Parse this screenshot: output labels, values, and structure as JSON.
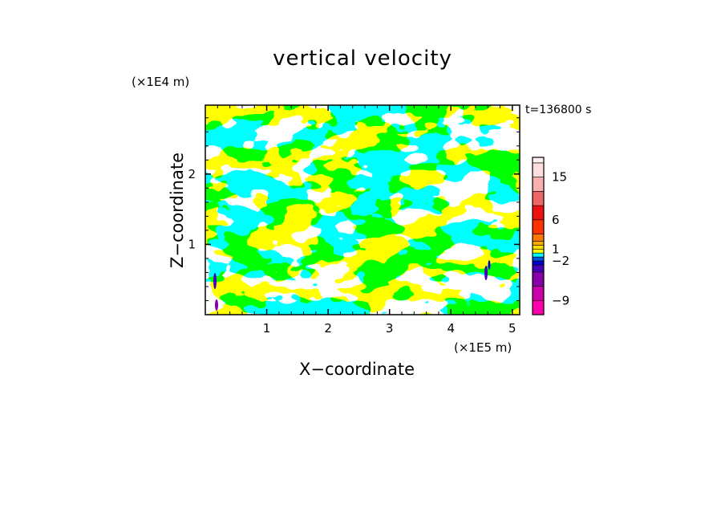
{
  "chart_data": {
    "type": "heatmap",
    "title": "vertical velocity",
    "xlabel": "X−coordinate",
    "ylabel": "Z−coordinate",
    "x_multiplier": "(×1E5 m)",
    "y_multiplier": "(×1E4 m)",
    "time_label": "t=136800 s",
    "x_ticks": [
      "1",
      "2",
      "3",
      "4",
      "5"
    ],
    "x_tick_values": [
      1,
      2,
      3,
      4,
      5
    ],
    "y_ticks": [
      "1",
      "2"
    ],
    "y_tick_values": [
      1,
      2
    ],
    "xlim": [
      0,
      5.12
    ],
    "ylim": [
      0,
      2.98
    ],
    "colorbar": {
      "labels": [
        "15",
        "6",
        "1",
        "−2",
        "−9"
      ],
      "label_values": [
        15,
        6,
        1,
        -2,
        -9
      ],
      "levels": [
        -12,
        -9,
        -6,
        -4,
        -3,
        -2,
        -1,
        0,
        1,
        2,
        3,
        4,
        6,
        9,
        12,
        15,
        18,
        21
      ],
      "colors": [
        "#ff00aa",
        "#cc00aa",
        "#8800aa",
        "#4400bb",
        "#0000cc",
        "#0055dd",
        "#00ffff",
        "#ffff00",
        "#ffdd00",
        "#ffaa00",
        "#ff7700",
        "#ff3300",
        "#ee1111",
        "#ee6666",
        "#f8b0b0",
        "#fcdede",
        "#fff0f0"
      ]
    },
    "dominant_colors": {
      "positive": "#ffff00",
      "negative": "#00ffff"
    }
  }
}
